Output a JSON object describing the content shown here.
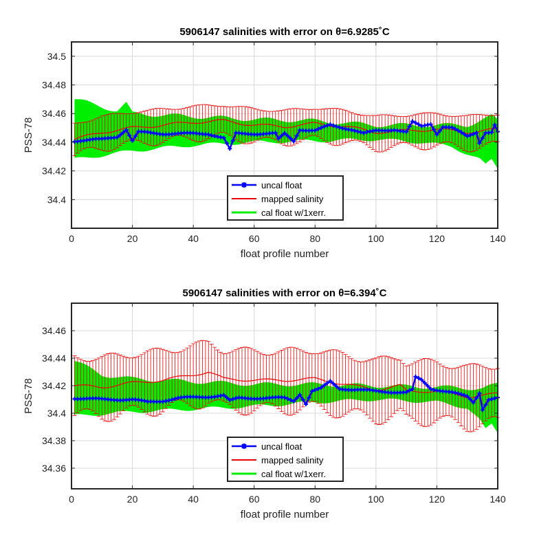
{
  "chart_data": [
    {
      "type": "line",
      "title": "5906147 salinities with error on θ=6.9285˚C",
      "xlabel": "float profile number",
      "ylabel": "PSS-78",
      "xlim": [
        0,
        140
      ],
      "ylim": [
        34.38,
        34.51
      ],
      "xticks": [
        0,
        20,
        40,
        60,
        80,
        100,
        120,
        140
      ],
      "yticks": [
        34.4,
        34.42,
        34.44,
        34.46,
        34.48,
        34.5
      ],
      "ytick_labels": [
        "34.4",
        "34.42",
        "34.44",
        "34.46",
        "34.48",
        "34.5"
      ],
      "grid": true,
      "legend_placement": "bottom-center",
      "legend": [
        "uncal float",
        "mapped salinity",
        "cal float w/1xerr."
      ],
      "colors": {
        "uncal": "#0000ff",
        "mapped": "#ee0000",
        "cal": "#00ee00"
      },
      "mapped_err": 0.011,
      "uncal_keys": [
        [
          1,
          34.441
        ],
        [
          10,
          34.442
        ],
        [
          15,
          34.444
        ],
        [
          18,
          34.449
        ],
        [
          20,
          34.441
        ],
        [
          22,
          34.447
        ],
        [
          30,
          34.446
        ],
        [
          45,
          34.446
        ],
        [
          50,
          34.443
        ],
        [
          52,
          34.435
        ],
        [
          54,
          34.446
        ],
        [
          60,
          34.446
        ],
        [
          67,
          34.446
        ],
        [
          68,
          34.442
        ],
        [
          70,
          34.446
        ],
        [
          73,
          34.441
        ],
        [
          75,
          34.449
        ],
        [
          80,
          34.448
        ],
        [
          85,
          34.452
        ],
        [
          92,
          34.449
        ],
        [
          96,
          34.446
        ],
        [
          100,
          34.448
        ],
        [
          106,
          34.449
        ],
        [
          110,
          34.447
        ],
        [
          112,
          34.454
        ],
        [
          115,
          34.451
        ],
        [
          118,
          34.453
        ],
        [
          120,
          34.446
        ],
        [
          122,
          34.451
        ],
        [
          125,
          34.45
        ],
        [
          130,
          34.444
        ],
        [
          133,
          34.447
        ],
        [
          134,
          34.44
        ],
        [
          136,
          34.447
        ],
        [
          138,
          34.447
        ],
        [
          139,
          34.452
        ],
        [
          140,
          34.447
        ]
      ],
      "mapped_keys": [
        [
          1,
          34.442
        ],
        [
          10,
          34.447
        ],
        [
          20,
          34.45
        ],
        [
          30,
          34.452
        ],
        [
          40,
          34.454
        ],
        [
          50,
          34.455
        ],
        [
          60,
          34.452
        ],
        [
          70,
          34.451
        ],
        [
          80,
          34.453
        ],
        [
          90,
          34.451
        ],
        [
          100,
          34.447
        ],
        [
          110,
          34.448
        ],
        [
          120,
          34.449
        ],
        [
          130,
          34.447
        ],
        [
          140,
          34.449
        ]
      ],
      "cal_upper_keys": [
        [
          1,
          34.47
        ],
        [
          15,
          34.462
        ],
        [
          18,
          34.467
        ],
        [
          20,
          34.46
        ],
        [
          40,
          34.458
        ],
        [
          60,
          34.456
        ],
        [
          80,
          34.455
        ],
        [
          100,
          34.452
        ],
        [
          120,
          34.452
        ],
        [
          130,
          34.452
        ],
        [
          138,
          34.458
        ],
        [
          140,
          34.455
        ]
      ],
      "cal_lower_keys": [
        [
          1,
          34.428
        ],
        [
          20,
          34.434
        ],
        [
          40,
          34.438
        ],
        [
          60,
          34.44
        ],
        [
          80,
          34.441
        ],
        [
          100,
          34.442
        ],
        [
          115,
          34.44
        ],
        [
          125,
          34.437
        ],
        [
          130,
          34.432
        ],
        [
          134,
          34.428
        ],
        [
          136,
          34.424
        ],
        [
          138,
          34.428
        ],
        [
          140,
          34.422
        ]
      ]
    },
    {
      "type": "line",
      "title": "5906147 salinities with error on θ=6.394˚C",
      "xlabel": "float profile number",
      "ylabel": "PSS-78",
      "xlim": [
        0,
        140
      ],
      "ylim": [
        34.345,
        34.48
      ],
      "xticks": [
        0,
        20,
        40,
        60,
        80,
        100,
        120,
        140
      ],
      "yticks": [
        34.36,
        34.38,
        34.4,
        34.42,
        34.44,
        34.46
      ],
      "ytick_labels": [
        "34.36",
        "34.38",
        "34.4",
        "34.42",
        "34.44",
        "34.46"
      ],
      "grid": true,
      "legend_placement": "bottom-center",
      "legend": [
        "uncal float",
        "mapped salinity",
        "cal float w/1xerr."
      ],
      "colors": {
        "uncal": "#0000ff",
        "mapped": "#ee0000",
        "cal": "#00ee00"
      },
      "mapped_err": 0.021,
      "uncal_keys": [
        [
          1,
          34.411
        ],
        [
          10,
          34.41
        ],
        [
          20,
          34.41
        ],
        [
          25,
          34.408
        ],
        [
          30,
          34.409
        ],
        [
          35,
          34.411
        ],
        [
          45,
          34.412
        ],
        [
          50,
          34.413
        ],
        [
          52,
          34.409
        ],
        [
          55,
          34.411
        ],
        [
          60,
          34.411
        ],
        [
          70,
          34.411
        ],
        [
          73,
          34.409
        ],
        [
          75,
          34.414
        ],
        [
          77,
          34.407
        ],
        [
          79,
          34.416
        ],
        [
          82,
          34.418
        ],
        [
          85,
          34.423
        ],
        [
          88,
          34.418
        ],
        [
          100,
          34.416
        ],
        [
          110,
          34.415
        ],
        [
          112,
          34.417
        ],
        [
          113,
          34.426
        ],
        [
          115,
          34.424
        ],
        [
          118,
          34.418
        ],
        [
          125,
          34.415
        ],
        [
          130,
          34.412
        ],
        [
          132,
          34.408
        ],
        [
          134,
          34.415
        ],
        [
          135,
          34.403
        ],
        [
          137,
          34.41
        ],
        [
          140,
          34.411
        ]
      ],
      "mapped_keys": [
        [
          1,
          34.42
        ],
        [
          10,
          34.419
        ],
        [
          20,
          34.422
        ],
        [
          30,
          34.424
        ],
        [
          40,
          34.428
        ],
        [
          45,
          34.43
        ],
        [
          50,
          34.425
        ],
        [
          60,
          34.424
        ],
        [
          70,
          34.424
        ],
        [
          80,
          34.425
        ],
        [
          90,
          34.421
        ],
        [
          100,
          34.417
        ],
        [
          108,
          34.42
        ],
        [
          110,
          34.416
        ],
        [
          120,
          34.416
        ],
        [
          130,
          34.412
        ],
        [
          140,
          34.414
        ]
      ],
      "cal_upper_keys": [
        [
          1,
          34.438
        ],
        [
          10,
          34.428
        ],
        [
          20,
          34.425
        ],
        [
          40,
          34.423
        ],
        [
          60,
          34.421
        ],
        [
          80,
          34.421
        ],
        [
          100,
          34.42
        ],
        [
          120,
          34.419
        ],
        [
          135,
          34.418
        ],
        [
          140,
          34.421
        ]
      ],
      "cal_lower_keys": [
        [
          1,
          34.398
        ],
        [
          20,
          34.401
        ],
        [
          40,
          34.403
        ],
        [
          60,
          34.405
        ],
        [
          80,
          34.408
        ],
        [
          100,
          34.41
        ],
        [
          120,
          34.408
        ],
        [
          130,
          34.404
        ],
        [
          134,
          34.395
        ],
        [
          136,
          34.388
        ],
        [
          138,
          34.392
        ],
        [
          140,
          34.386
        ]
      ]
    }
  ]
}
